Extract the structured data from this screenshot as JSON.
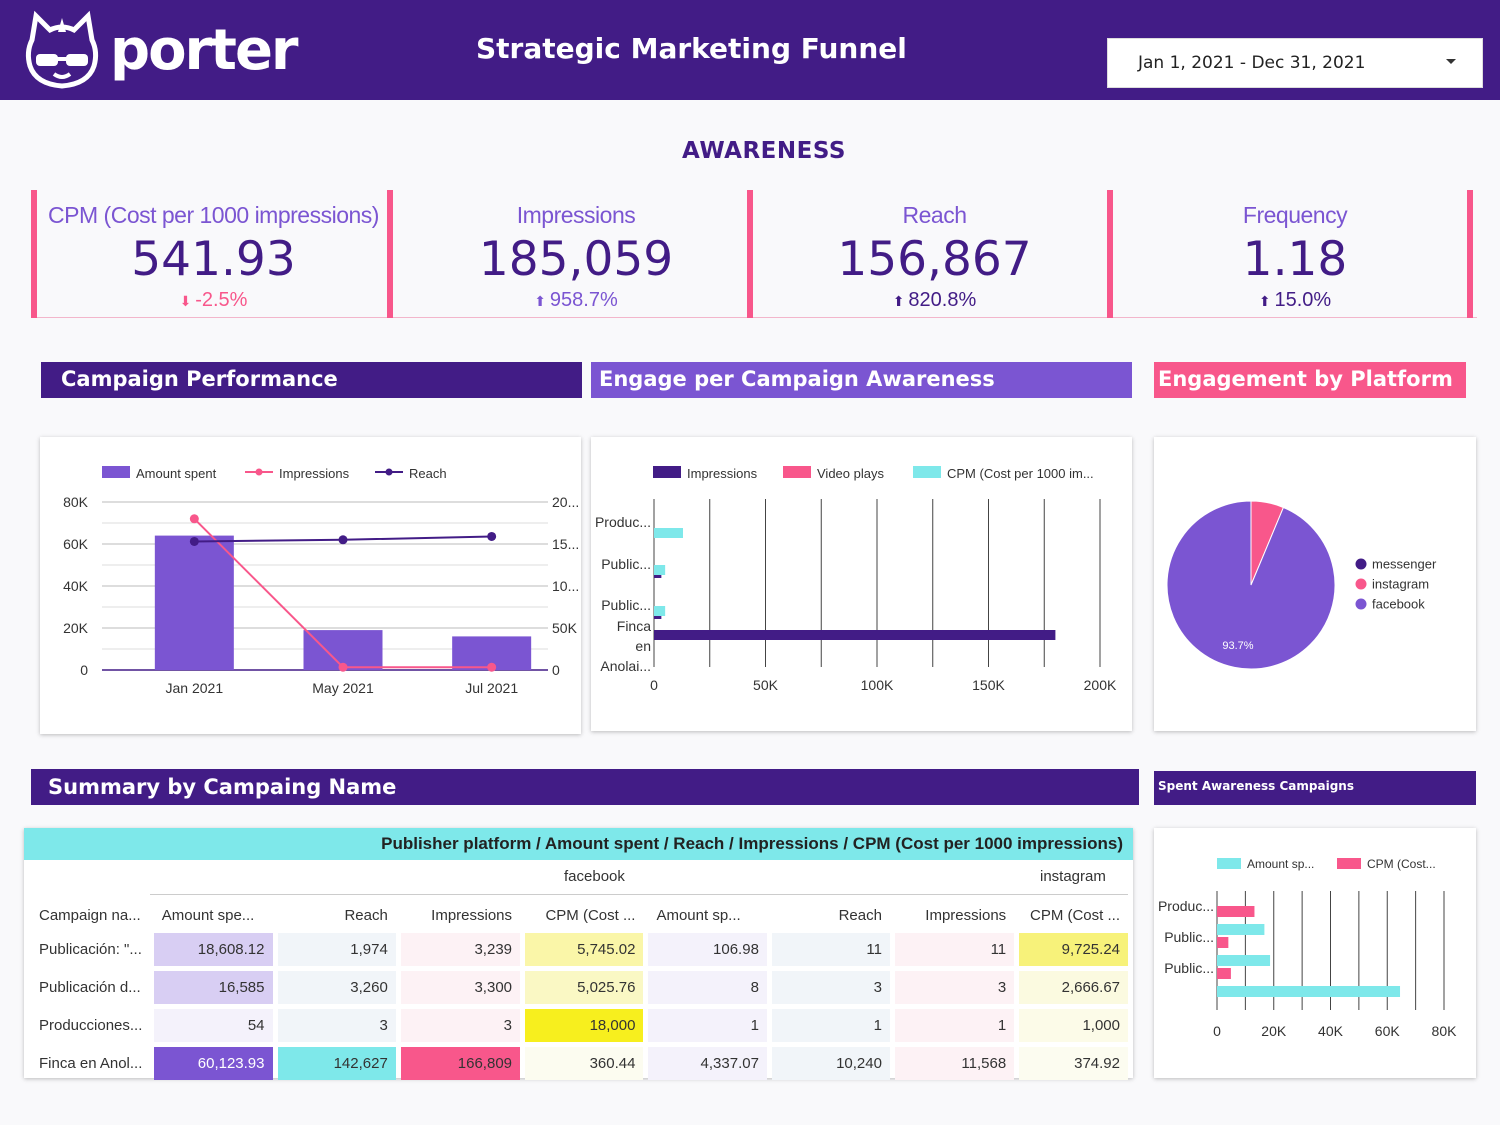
{
  "header": {
    "brand": "porter",
    "title": "Strategic Marketing Funnel",
    "date_range": "Jan 1, 2021 - Dec 31, 2021"
  },
  "section_title": "AWARENESS",
  "kpis": [
    {
      "label": "CPM (Cost per 1000 impressions)",
      "value": "541.93",
      "delta": "-2.5%",
      "direction": "down"
    },
    {
      "label": "Impressions",
      "value": "185,059",
      "delta": "958.7%",
      "direction": "up"
    },
    {
      "label": "Reach",
      "value": "156,867",
      "delta": "820.8%",
      "direction": "up"
    },
    {
      "label": "Frequency",
      "value": "1.18",
      "delta": "15.0%",
      "direction": "up"
    }
  ],
  "panels": {
    "campaign_performance": "Campaign Performance",
    "engage_per_campaign": "Engage per Campaign Awareness",
    "engagement_by_platform": "Engagement by Platform",
    "summary": "Summary by Campaing Name",
    "spent_awareness": "Spent Awareness Campaigns"
  },
  "colors": {
    "purple_dark": "#421c86",
    "purple": "#7b55d2",
    "pink": "#f8578b",
    "cyan": "#7ee8ea",
    "yellow": "#f7f25a"
  },
  "chart_data": [
    {
      "type": "bar",
      "name": "Campaign Performance",
      "categories": [
        "Jan 2021",
        "May 2021",
        "Jul 2021"
      ],
      "series": [
        {
          "name": "Amount spent",
          "type": "bar",
          "axis": "left",
          "values": [
            64000,
            19000,
            16000
          ]
        },
        {
          "name": "Impressions",
          "type": "line",
          "axis": "right",
          "values": [
            180000,
            3300,
            3300
          ]
        },
        {
          "name": "Reach",
          "type": "line",
          "axis": "right",
          "values": [
            153000,
            155000,
            159000
          ]
        }
      ],
      "left_ticks": [
        "80K",
        "60K",
        "40K",
        "20K",
        "0"
      ],
      "right_ticks": [
        "20...",
        "15...",
        "10...",
        "50K",
        "0"
      ],
      "ylim": [
        0,
        80000
      ],
      "y2lim": [
        0,
        200000
      ],
      "legend": "top"
    },
    {
      "type": "bar",
      "orientation": "horizontal",
      "name": "Engage per Campaign Awareness",
      "categories": [
        "Produc...",
        "Public...",
        "Public...",
        "Finca en Anolai..."
      ],
      "series": [
        {
          "name": "Impressions",
          "values": [
            0,
            3300,
            3300,
            180000
          ]
        },
        {
          "name": "Video plays",
          "values": [
            0,
            0,
            0,
            0
          ]
        },
        {
          "name": "CPM (Cost per 1000 im...",
          "values": [
            13000,
            5000,
            5000,
            400
          ]
        }
      ],
      "x_ticks": [
        "0",
        "50K",
        "100K",
        "150K",
        "200K"
      ],
      "xlim": [
        0,
        200000
      ],
      "legend": "top"
    },
    {
      "type": "pie",
      "name": "Engagement by Platform",
      "labels": [
        "messenger",
        "instagram",
        "facebook"
      ],
      "values": [
        0,
        6.3,
        93.7
      ],
      "slice_label": "93.7%",
      "legend": "right"
    },
    {
      "type": "bar",
      "orientation": "horizontal",
      "name": "Spent Awareness Campaigns",
      "categories": [
        "Produc...",
        "Public...",
        "Public...",
        ""
      ],
      "series": [
        {
          "name": "Amount sp...",
          "values": [
            0,
            16700,
            18700,
            64500
          ]
        },
        {
          "name": "CPM (Cost...",
          "values": [
            13200,
            4000,
            4900,
            0
          ]
        }
      ],
      "x_ticks": [
        "0",
        "20K",
        "40K",
        "60K",
        "80K"
      ],
      "xlim": [
        0,
        80000
      ],
      "legend": "top"
    }
  ],
  "table": {
    "header_banner": "Publisher platform / Amount spent / Reach / Impressions / CPM (Cost per 1000 impressions)",
    "platforms": [
      "facebook",
      "instagram"
    ],
    "row_header": "Campaign na...",
    "columns": [
      "Amount spe...",
      "Reach",
      "Impressions",
      "CPM (Cost ...",
      "Amount sp...",
      "Reach",
      "Impressions",
      "CPM (Cost ..."
    ],
    "rows": [
      {
        "name": "Publicación: \"...",
        "cells": [
          "18,608.12",
          "1,974",
          "3,239",
          "5,745.02",
          "106.98",
          "11",
          "11",
          "9,725.24"
        ]
      },
      {
        "name": "Publicación d...",
        "cells": [
          "16,585",
          "3,260",
          "3,300",
          "5,025.76",
          "8",
          "3",
          "3",
          "2,666.67"
        ]
      },
      {
        "name": "Producciones...",
        "cells": [
          "54",
          "3",
          "3",
          "18,000",
          "1",
          "1",
          "1",
          "1,000"
        ]
      },
      {
        "name": "Finca en Anol...",
        "cells": [
          "60,123.93",
          "142,627",
          "166,809",
          "360.44",
          "4,337.07",
          "10,240",
          "11,568",
          "374.92"
        ]
      }
    ]
  }
}
